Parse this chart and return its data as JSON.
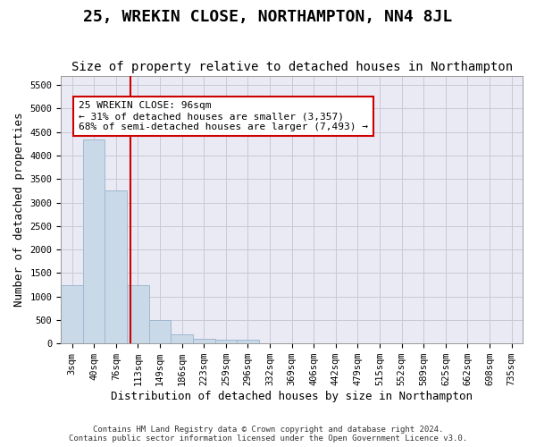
{
  "title": "25, WREKIN CLOSE, NORTHAMPTON, NN4 8JL",
  "subtitle": "Size of property relative to detached houses in Northampton",
  "xlabel": "Distribution of detached houses by size in Northampton",
  "ylabel": "Number of detached properties",
  "footer_line1": "Contains HM Land Registry data © Crown copyright and database right 2024.",
  "footer_line2": "Contains public sector information licensed under the Open Government Licence v3.0.",
  "bin_labels": [
    "3sqm",
    "40sqm",
    "76sqm",
    "113sqm",
    "149sqm",
    "186sqm",
    "223sqm",
    "259sqm",
    "296sqm",
    "332sqm",
    "369sqm",
    "406sqm",
    "442sqm",
    "479sqm",
    "515sqm",
    "552sqm",
    "589sqm",
    "625sqm",
    "662sqm",
    "698sqm",
    "735sqm"
  ],
  "bar_values": [
    1250,
    4350,
    3250,
    1250,
    500,
    200,
    100,
    75,
    75,
    0,
    0,
    0,
    0,
    0,
    0,
    0,
    0,
    0,
    0,
    0,
    0
  ],
  "bar_color": "#c9d9e8",
  "bar_edge_color": "#a0b8d0",
  "vline_x": 2.65,
  "vline_color": "#cc0000",
  "annotation_text": "25 WREKIN CLOSE: 96sqm\n← 31% of detached houses are smaller (3,357)\n68% of semi-detached houses are larger (7,493) →",
  "annotation_box_color": "#ffffff",
  "annotation_box_edge": "#cc0000",
  "ylim": [
    0,
    5700
  ],
  "yticks": [
    0,
    500,
    1000,
    1500,
    2000,
    2500,
    3000,
    3500,
    4000,
    4500,
    5000,
    5500
  ],
  "grid_color": "#c8c8d8",
  "plot_bg_color": "#eaeaf4",
  "title_fontsize": 13,
  "subtitle_fontsize": 10,
  "xlabel_fontsize": 9,
  "ylabel_fontsize": 9,
  "tick_fontsize": 7.5,
  "annotation_fontsize": 8
}
